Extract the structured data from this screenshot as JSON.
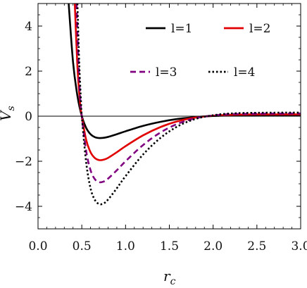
{
  "chart_data": {
    "type": "line",
    "xlabel": "r",
    "xlabel_sub": "c",
    "ylabel": "V",
    "ylabel_sub": "s",
    "xlim": [
      0.0,
      3.0
    ],
    "ylim": [
      -5,
      5
    ],
    "x_ticks": [
      0.0,
      0.5,
      1.0,
      1.5,
      2.0,
      2.5,
      3.0
    ],
    "x_tick_labels": [
      "0.0",
      "0.5",
      "1.0",
      "1.5",
      "2.0",
      "2.5",
      "3.0"
    ],
    "y_ticks": [
      -4,
      -2,
      0,
      2,
      4
    ],
    "y_tick_labels": [
      "−4",
      "−2",
      "0",
      "2",
      "4"
    ],
    "zero_line": true,
    "legend_placement": "top-right",
    "series": [
      {
        "name": "l=1",
        "color": "#000000",
        "style": "solid",
        "x": [
          0.35,
          0.4,
          0.45,
          0.5,
          0.55,
          0.6,
          0.65,
          0.7,
          0.75,
          0.8,
          0.9,
          1.0,
          1.2,
          1.4,
          1.6,
          1.8,
          2.0,
          2.2,
          2.5,
          3.0
        ],
        "y": [
          5.0,
          2.4,
          0.9,
          0.0,
          -0.52,
          -0.8,
          -0.93,
          -0.97,
          -0.96,
          -0.92,
          -0.8,
          -0.67,
          -0.43,
          -0.25,
          -0.12,
          -0.04,
          0.01,
          0.03,
          0.04,
          0.04
        ]
      },
      {
        "name": "l=2",
        "color": "#e00000",
        "style": "solid",
        "x": [
          0.42,
          0.45,
          0.48,
          0.5,
          0.55,
          0.6,
          0.65,
          0.7,
          0.75,
          0.8,
          0.9,
          1.0,
          1.2,
          1.4,
          1.6,
          1.8,
          2.0,
          2.2,
          2.5,
          3.0
        ],
        "y": [
          5.0,
          2.2,
          0.6,
          0.0,
          -1.05,
          -1.6,
          -1.86,
          -1.95,
          -1.93,
          -1.85,
          -1.6,
          -1.33,
          -0.85,
          -0.48,
          -0.22,
          -0.06,
          0.02,
          0.06,
          0.08,
          0.08
        ]
      },
      {
        "name": "l=3",
        "color": "#800080",
        "style": "dashed",
        "x": [
          0.44,
          0.46,
          0.48,
          0.5,
          0.55,
          0.6,
          0.65,
          0.7,
          0.75,
          0.8,
          0.9,
          1.0,
          1.2,
          1.4,
          1.6,
          1.8,
          2.0,
          2.2,
          2.5,
          3.0
        ],
        "y": [
          5.0,
          2.6,
          0.9,
          0.0,
          -1.55,
          -2.4,
          -2.8,
          -2.93,
          -2.9,
          -2.77,
          -2.4,
          -2.0,
          -1.28,
          -0.72,
          -0.33,
          -0.09,
          0.03,
          0.09,
          0.11,
          0.12
        ]
      },
      {
        "name": "l=4",
        "color": "#000000",
        "style": "dotted",
        "x": [
          0.45,
          0.47,
          0.49,
          0.5,
          0.55,
          0.6,
          0.65,
          0.7,
          0.75,
          0.8,
          0.9,
          1.0,
          1.2,
          1.4,
          1.6,
          1.8,
          2.0,
          2.2,
          2.5,
          3.0
        ],
        "y": [
          5.0,
          2.4,
          0.7,
          0.0,
          -2.05,
          -3.2,
          -3.72,
          -3.9,
          -3.87,
          -3.7,
          -3.2,
          -2.66,
          -1.7,
          -0.96,
          -0.44,
          -0.12,
          0.04,
          0.12,
          0.15,
          0.16
        ]
      }
    ]
  }
}
